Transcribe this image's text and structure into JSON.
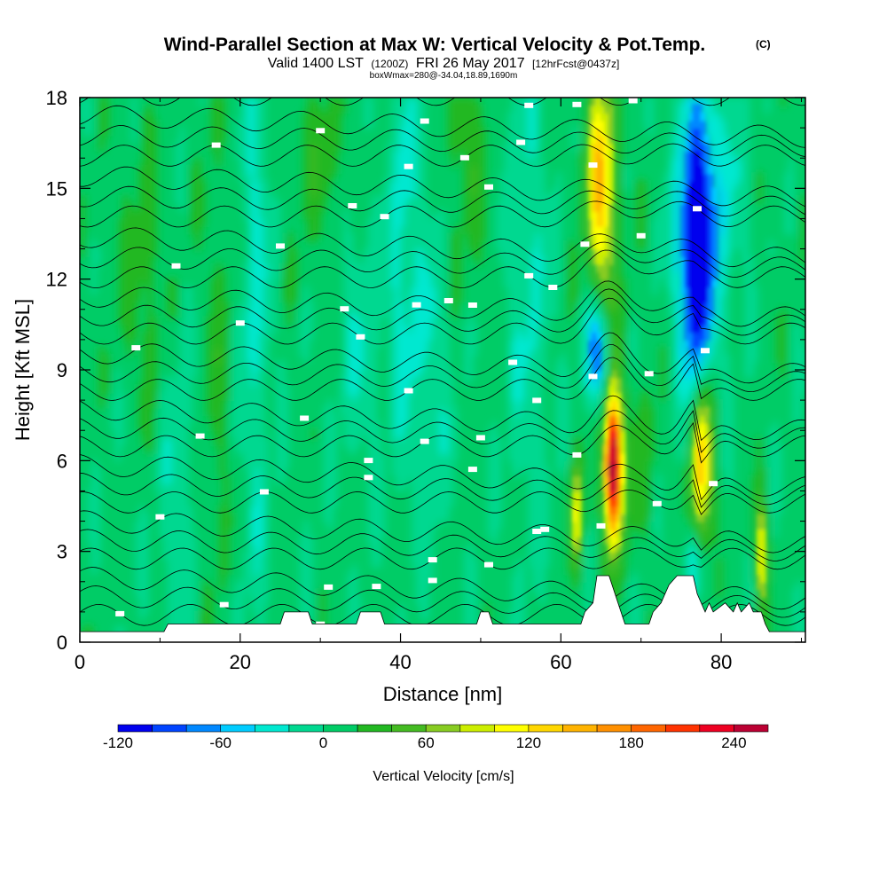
{
  "title": {
    "main": "Wind-Parallel Section at Max W: Vertical Velocity & Pot.Temp.",
    "copyright": "(C)",
    "valid_a": "Valid 1400 LST",
    "valid_b": "(1200Z)",
    "valid_c": "FRI 26 May 2017",
    "valid_d": "[12hrFcst@0437z]",
    "box_info": "boxWmax=280@-34.04,18.89,1690m"
  },
  "chart_data": {
    "type": "heatmap",
    "xlabel": "Distance [nm]",
    "ylabel": "Height [Kft MSL]",
    "xlim": [
      0,
      90.5
    ],
    "ylim": [
      0,
      18
    ],
    "xticks": [
      "0",
      "20",
      "40",
      "60",
      "80"
    ],
    "yticks": [
      "0",
      "3",
      "6",
      "9",
      "12",
      "15",
      "18"
    ],
    "colorbar": {
      "label": "Vertical Velocity [cm/s]",
      "tick_labels": [
        "-120",
        "-60",
        "0",
        "60",
        "120",
        "180",
        "240"
      ],
      "tick_values": [
        -120,
        -60,
        0,
        60,
        120,
        180,
        240
      ],
      "min": -120,
      "max": 260,
      "step": 20,
      "colors": [
        "#0000ee",
        "#0044ff",
        "#0088ff",
        "#00ccff",
        "#00e8d0",
        "#00d890",
        "#00cc66",
        "#22b822",
        "#44bb22",
        "#88cc22",
        "#ccee00",
        "#ffff00",
        "#ffd700",
        "#ffb300",
        "#ff9000",
        "#ff6600",
        "#ff3300",
        "#ee0022",
        "#bb0033"
      ]
    },
    "field": "vertical velocity (cm/s), shaded; potential temperature, black contours",
    "vertical_velocity_features": [
      {
        "x": 66.5,
        "y": 6.0,
        "value": 280
      },
      {
        "x": 65.0,
        "y": 15.0,
        "value": 130
      },
      {
        "x": 77.5,
        "y": 6.0,
        "value": 130
      },
      {
        "x": 62.0,
        "y": 4.0,
        "value": 100
      },
      {
        "x": 85.0,
        "y": 3.0,
        "value": 100
      },
      {
        "x": 77.0,
        "y": 12.5,
        "value": -120
      },
      {
        "x": 64.5,
        "y": 9.5,
        "value": -100
      },
      {
        "x": 76.5,
        "y": 2.5,
        "value": -60
      }
    ],
    "terrain_kft": [
      {
        "x": 0,
        "h": 0.35
      },
      {
        "x": 10.5,
        "h": 0.35
      },
      {
        "x": 11,
        "h": 0.6
      },
      {
        "x": 25,
        "h": 0.6
      },
      {
        "x": 25.5,
        "h": 1.0
      },
      {
        "x": 28.5,
        "h": 1.0
      },
      {
        "x": 29,
        "h": 0.6
      },
      {
        "x": 34.5,
        "h": 0.6
      },
      {
        "x": 35,
        "h": 1.0
      },
      {
        "x": 37.5,
        "h": 1.0
      },
      {
        "x": 38,
        "h": 0.6
      },
      {
        "x": 49.5,
        "h": 0.6
      },
      {
        "x": 50,
        "h": 1.0
      },
      {
        "x": 51,
        "h": 1.0
      },
      {
        "x": 51.5,
        "h": 0.6
      },
      {
        "x": 62.5,
        "h": 0.6
      },
      {
        "x": 63,
        "h": 1.0
      },
      {
        "x": 64,
        "h": 1.3
      },
      {
        "x": 64.5,
        "h": 2.2
      },
      {
        "x": 66,
        "h": 2.2
      },
      {
        "x": 66.5,
        "h": 1.8
      },
      {
        "x": 67.5,
        "h": 1.0
      },
      {
        "x": 68,
        "h": 0.6
      },
      {
        "x": 71,
        "h": 0.6
      },
      {
        "x": 71.5,
        "h": 1.0
      },
      {
        "x": 72.5,
        "h": 1.3
      },
      {
        "x": 73,
        "h": 1.6
      },
      {
        "x": 73.5,
        "h": 1.9
      },
      {
        "x": 74.5,
        "h": 2.2
      },
      {
        "x": 76.5,
        "h": 2.2
      },
      {
        "x": 77,
        "h": 1.6
      },
      {
        "x": 78,
        "h": 1.0
      },
      {
        "x": 78.5,
        "h": 1.3
      },
      {
        "x": 79,
        "h": 1.0
      },
      {
        "x": 80.5,
        "h": 1.3
      },
      {
        "x": 81.5,
        "h": 1.0
      },
      {
        "x": 82,
        "h": 1.3
      },
      {
        "x": 82.5,
        "h": 1.0
      },
      {
        "x": 83.5,
        "h": 1.3
      },
      {
        "x": 84,
        "h": 1.0
      },
      {
        "x": 85,
        "h": 1.0
      },
      {
        "x": 85.5,
        "h": 0.6
      },
      {
        "x": 86,
        "h": 0.35
      },
      {
        "x": 90.5,
        "h": 0.35
      }
    ],
    "grid": false
  }
}
